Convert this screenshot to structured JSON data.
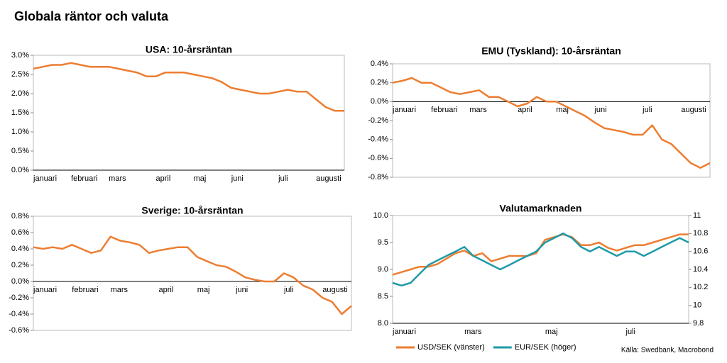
{
  "title": "Globala räntor och valuta",
  "source": "Källa: Swedbank, Macrobond",
  "chart_data": [
    {
      "type": "line",
      "title": "USA: 10-årsräntan",
      "categories": [
        "januari",
        null,
        null,
        null,
        "februari",
        null,
        null,
        null,
        "mars",
        null,
        null,
        null,
        null,
        "april",
        null,
        null,
        null,
        "maj",
        null,
        null,
        null,
        "juni",
        null,
        null,
        null,
        null,
        "juli",
        null,
        null,
        null,
        "augusti",
        null,
        null,
        null
      ],
      "values": [
        2.65,
        2.7,
        2.75,
        2.75,
        2.8,
        2.75,
        2.7,
        2.7,
        2.7,
        2.65,
        2.6,
        2.55,
        2.45,
        2.45,
        2.55,
        2.55,
        2.55,
        2.5,
        2.45,
        2.4,
        2.3,
        2.15,
        2.1,
        2.05,
        2.0,
        2.0,
        2.05,
        2.1,
        2.05,
        2.05,
        1.85,
        1.65,
        1.55,
        1.55
      ],
      "color": "#ed7d31",
      "ylim": [
        0,
        3
      ],
      "yticks": [
        {
          "value": 0,
          "label": "0.0%"
        },
        {
          "value": 0.5,
          "label": "0.5%"
        },
        {
          "value": 1,
          "label": "1.0%"
        },
        {
          "value": 1.5,
          "label": "1.5%"
        },
        {
          "value": 2,
          "label": "2.0%"
        },
        {
          "value": 2.5,
          "label": "2.5%"
        },
        {
          "value": 3,
          "label": "3.0%"
        }
      ]
    },
    {
      "type": "line",
      "title": "EMU (Tyskland): 10-årsräntan",
      "categories": [
        "januari",
        null,
        null,
        null,
        "februari",
        null,
        null,
        null,
        "mars",
        null,
        null,
        null,
        null,
        "april",
        null,
        null,
        null,
        "maj",
        null,
        null,
        null,
        "juni",
        null,
        null,
        null,
        null,
        "juli",
        null,
        null,
        null,
        "augusti",
        null,
        null,
        null
      ],
      "values": [
        0.2,
        0.22,
        0.25,
        0.2,
        0.2,
        0.15,
        0.1,
        0.08,
        0.1,
        0.12,
        0.05,
        0.05,
        0.0,
        -0.05,
        -0.02,
        0.05,
        0.0,
        0.0,
        -0.05,
        -0.1,
        -0.15,
        -0.22,
        -0.28,
        -0.3,
        -0.32,
        -0.35,
        -0.35,
        -0.25,
        -0.4,
        -0.45,
        -0.55,
        -0.65,
        -0.7,
        -0.65
      ],
      "color": "#ed7d31",
      "ylim": [
        -0.8,
        0.4
      ],
      "yticks": [
        {
          "value": -0.8,
          "label": "-0.8%"
        },
        {
          "value": -0.6,
          "label": "-0.6%"
        },
        {
          "value": -0.4,
          "label": "-0.4%"
        },
        {
          "value": -0.2,
          "label": "-0.2%"
        },
        {
          "value": 0,
          "label": "0.0%"
        },
        {
          "value": 0.2,
          "label": "0.2%"
        },
        {
          "value": 0.4,
          "label": "0.4%"
        }
      ]
    },
    {
      "type": "line",
      "title": "Sverige: 10-årsräntan",
      "categories": [
        "januari",
        null,
        null,
        null,
        "februari",
        null,
        null,
        null,
        "mars",
        null,
        null,
        null,
        null,
        "april",
        null,
        null,
        null,
        "maj",
        null,
        null,
        null,
        "juni",
        null,
        null,
        null,
        null,
        "juli",
        null,
        null,
        null,
        "augusti",
        null,
        null,
        null
      ],
      "values": [
        0.42,
        0.4,
        0.42,
        0.4,
        0.45,
        0.4,
        0.35,
        0.38,
        0.55,
        0.5,
        0.48,
        0.45,
        0.35,
        0.38,
        0.4,
        0.42,
        0.42,
        0.3,
        0.25,
        0.2,
        0.18,
        0.12,
        0.05,
        0.02,
        0.0,
        0.0,
        0.1,
        0.05,
        -0.05,
        -0.1,
        -0.2,
        -0.25,
        -0.4,
        -0.3
      ],
      "color": "#ed7d31",
      "ylim": [
        -0.6,
        0.8
      ],
      "yticks": [
        {
          "value": -0.6,
          "label": "-0.6%"
        },
        {
          "value": -0.4,
          "label": "-0.4%"
        },
        {
          "value": -0.2,
          "label": "-0.2%"
        },
        {
          "value": 0,
          "label": "0.0%"
        },
        {
          "value": 0.2,
          "label": "0.2%"
        },
        {
          "value": 0.4,
          "label": "0.4%"
        },
        {
          "value": 0.6,
          "label": "0.6%"
        },
        {
          "value": 0.8,
          "label": "0.8%"
        }
      ]
    },
    {
      "type": "line",
      "title": "Valutamarknaden",
      "categories": [
        "januari",
        null,
        null,
        null,
        null,
        null,
        null,
        null,
        "mars",
        null,
        null,
        null,
        null,
        null,
        null,
        null,
        null,
        "maj",
        null,
        null,
        null,
        null,
        null,
        null,
        null,
        null,
        "juli",
        null,
        null,
        null,
        null,
        null,
        null,
        null
      ],
      "series": [
        {
          "name": "USD/SEK (vänster)",
          "color": "#ed7d31",
          "values": [
            8.9,
            8.95,
            9.0,
            9.05,
            9.05,
            9.1,
            9.2,
            9.3,
            9.35,
            9.25,
            9.3,
            9.15,
            9.2,
            9.25,
            9.25,
            9.25,
            9.3,
            9.55,
            9.6,
            9.65,
            9.6,
            9.45,
            9.45,
            9.5,
            9.4,
            9.35,
            9.4,
            9.45,
            9.45,
            9.5,
            9.55,
            9.6,
            9.65,
            9.65
          ]
        },
        {
          "name": "EUR/SEK (höger)",
          "color": "#1f9aa8",
          "axis": "y2",
          "values": [
            10.25,
            10.22,
            10.25,
            10.35,
            10.45,
            10.5,
            10.55,
            10.6,
            10.65,
            10.55,
            10.5,
            10.45,
            10.4,
            10.45,
            10.5,
            10.55,
            10.6,
            10.7,
            10.75,
            10.8,
            10.75,
            10.65,
            10.6,
            10.65,
            10.6,
            10.55,
            10.6,
            10.6,
            10.55,
            10.6,
            10.65,
            10.7,
            10.75,
            10.7
          ]
        }
      ],
      "ylim": [
        8,
        10
      ],
      "yticks": [
        {
          "value": 8,
          "label": "8.0"
        },
        {
          "value": 8.5,
          "label": "8.5"
        },
        {
          "value": 9,
          "label": "9.0"
        },
        {
          "value": 9.5,
          "label": "9.5"
        },
        {
          "value": 10,
          "label": "10.0"
        }
      ],
      "y2lim": [
        9.8,
        11
      ],
      "y2ticks": [
        9.8,
        10,
        10.2,
        10.4,
        10.6,
        10.8,
        11
      ]
    }
  ]
}
